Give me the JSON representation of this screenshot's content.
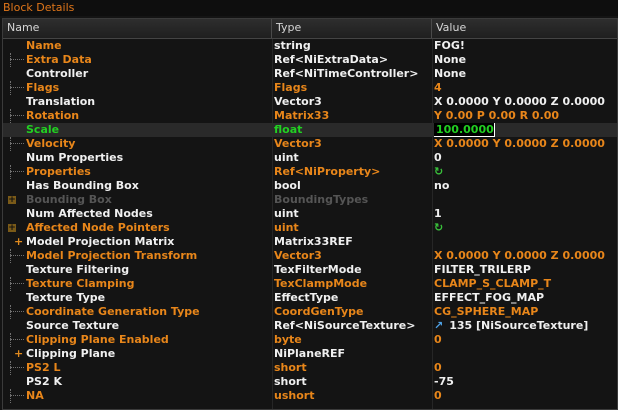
{
  "window": {
    "title": "Block Details"
  },
  "columns": {
    "name": "Name",
    "type": "Type",
    "value": "Value"
  },
  "colors": {
    "orange": "#e8861a",
    "white": "#f0f0f0",
    "green": "#22d022",
    "gray": "#555555"
  },
  "rows": [
    {
      "name": "Name",
      "type": "string",
      "value": "FOG!",
      "tree": "none",
      "nc": "orange",
      "tc": "white",
      "vc": "white"
    },
    {
      "name": "Extra Data",
      "type": "Ref<NiExtraData>",
      "value": "None",
      "tree": "dots",
      "nc": "orange",
      "tc": "white",
      "vc": "white"
    },
    {
      "name": "Controller",
      "type": "Ref<NiTimeController>",
      "value": "None",
      "tree": "none",
      "nc": "white",
      "tc": "white",
      "vc": "white"
    },
    {
      "name": "Flags",
      "type": "Flags",
      "value": "4",
      "tree": "dots",
      "nc": "orange",
      "tc": "orange",
      "vc": "orange"
    },
    {
      "name": "Translation",
      "type": "Vector3",
      "value": "X 0.0000 Y 0.0000 Z 0.0000",
      "tree": "none",
      "nc": "white",
      "tc": "white",
      "vc": "white"
    },
    {
      "name": "Rotation",
      "type": "Matrix33",
      "value": "Y 0.00 P 0.00 R 0.00",
      "tree": "dots",
      "nc": "orange",
      "tc": "orange",
      "vc": "orange"
    },
    {
      "name": "Scale",
      "type": "float",
      "value": "100.0000",
      "tree": "none",
      "nc": "green",
      "tc": "green",
      "vc": "green",
      "selected": true,
      "editing": true
    },
    {
      "name": "Velocity",
      "type": "Vector3",
      "value": "X 0.0000 Y 0.0000 Z 0.0000",
      "tree": "dots",
      "nc": "orange",
      "tc": "orange",
      "vc": "orange"
    },
    {
      "name": "Num Properties",
      "type": "uint",
      "value": "0",
      "tree": "none",
      "nc": "white",
      "tc": "white",
      "vc": "white"
    },
    {
      "name": "Properties",
      "type": "Ref<NiProperty>",
      "value": "",
      "icon": "refresh-icon",
      "tree": "dots",
      "nc": "orange",
      "tc": "orange",
      "vc": "orange"
    },
    {
      "name": "Has Bounding Box",
      "type": "bool",
      "value": "no",
      "tree": "none",
      "nc": "white",
      "tc": "white",
      "vc": "white"
    },
    {
      "name": "Bounding Box",
      "type": "BoundingTypes",
      "value": "",
      "tree": "expander",
      "nc": "gray",
      "tc": "gray",
      "vc": "gray"
    },
    {
      "name": "Num Affected Nodes",
      "type": "uint",
      "value": "1",
      "tree": "none",
      "nc": "white",
      "tc": "white",
      "vc": "white"
    },
    {
      "name": "Affected Node Pointers",
      "type": "uint",
      "value": "",
      "icon": "refresh-icon",
      "tree": "expander",
      "nc": "orange",
      "tc": "orange",
      "vc": "orange"
    },
    {
      "name": "Model Projection Matrix",
      "type": "Matrix33REF",
      "value": "",
      "tree": "plus",
      "nc": "white",
      "tc": "white",
      "vc": "white"
    },
    {
      "name": "Model Projection Transform",
      "type": "Vector3",
      "value": "X 0.0000 Y 0.0000 Z 0.0000",
      "tree": "dots",
      "nc": "orange",
      "tc": "orange",
      "vc": "orange"
    },
    {
      "name": "Texture Filtering",
      "type": "TexFilterMode",
      "value": "FILTER_TRILERP",
      "tree": "none",
      "nc": "white",
      "tc": "white",
      "vc": "white"
    },
    {
      "name": "Texture Clamping",
      "type": "TexClampMode",
      "value": "CLAMP_S_CLAMP_T",
      "tree": "dots",
      "nc": "orange",
      "tc": "orange",
      "vc": "orange"
    },
    {
      "name": "Texture Type",
      "type": "EffectType",
      "value": "EFFECT_FOG_MAP",
      "tree": "none",
      "nc": "white",
      "tc": "white",
      "vc": "white"
    },
    {
      "name": "Coordinate Generation Type",
      "type": "CoordGenType",
      "value": "CG_SPHERE_MAP",
      "tree": "dots",
      "nc": "orange",
      "tc": "orange",
      "vc": "orange"
    },
    {
      "name": "Source Texture",
      "type": "Ref<NiSourceTexture>",
      "value": "135 [NiSourceTexture]",
      "icon": "link-icon",
      "tree": "none",
      "nc": "white",
      "tc": "white",
      "vc": "white"
    },
    {
      "name": "Clipping Plane Enabled",
      "type": "byte",
      "value": "0",
      "tree": "dots",
      "nc": "orange",
      "tc": "orange",
      "vc": "orange"
    },
    {
      "name": "Clipping Plane",
      "type": "NiPlaneREF",
      "value": "",
      "tree": "plus",
      "nc": "white",
      "tc": "white",
      "vc": "white"
    },
    {
      "name": "PS2 L",
      "type": "short",
      "value": "0",
      "tree": "dots",
      "nc": "orange",
      "tc": "orange",
      "vc": "orange"
    },
    {
      "name": "PS2 K",
      "type": "short",
      "value": "-75",
      "tree": "none",
      "nc": "white",
      "tc": "white",
      "vc": "white"
    },
    {
      "name": "NA",
      "type": "ushort",
      "value": "0",
      "tree": "dots",
      "nc": "orange",
      "tc": "orange",
      "vc": "orange"
    }
  ]
}
